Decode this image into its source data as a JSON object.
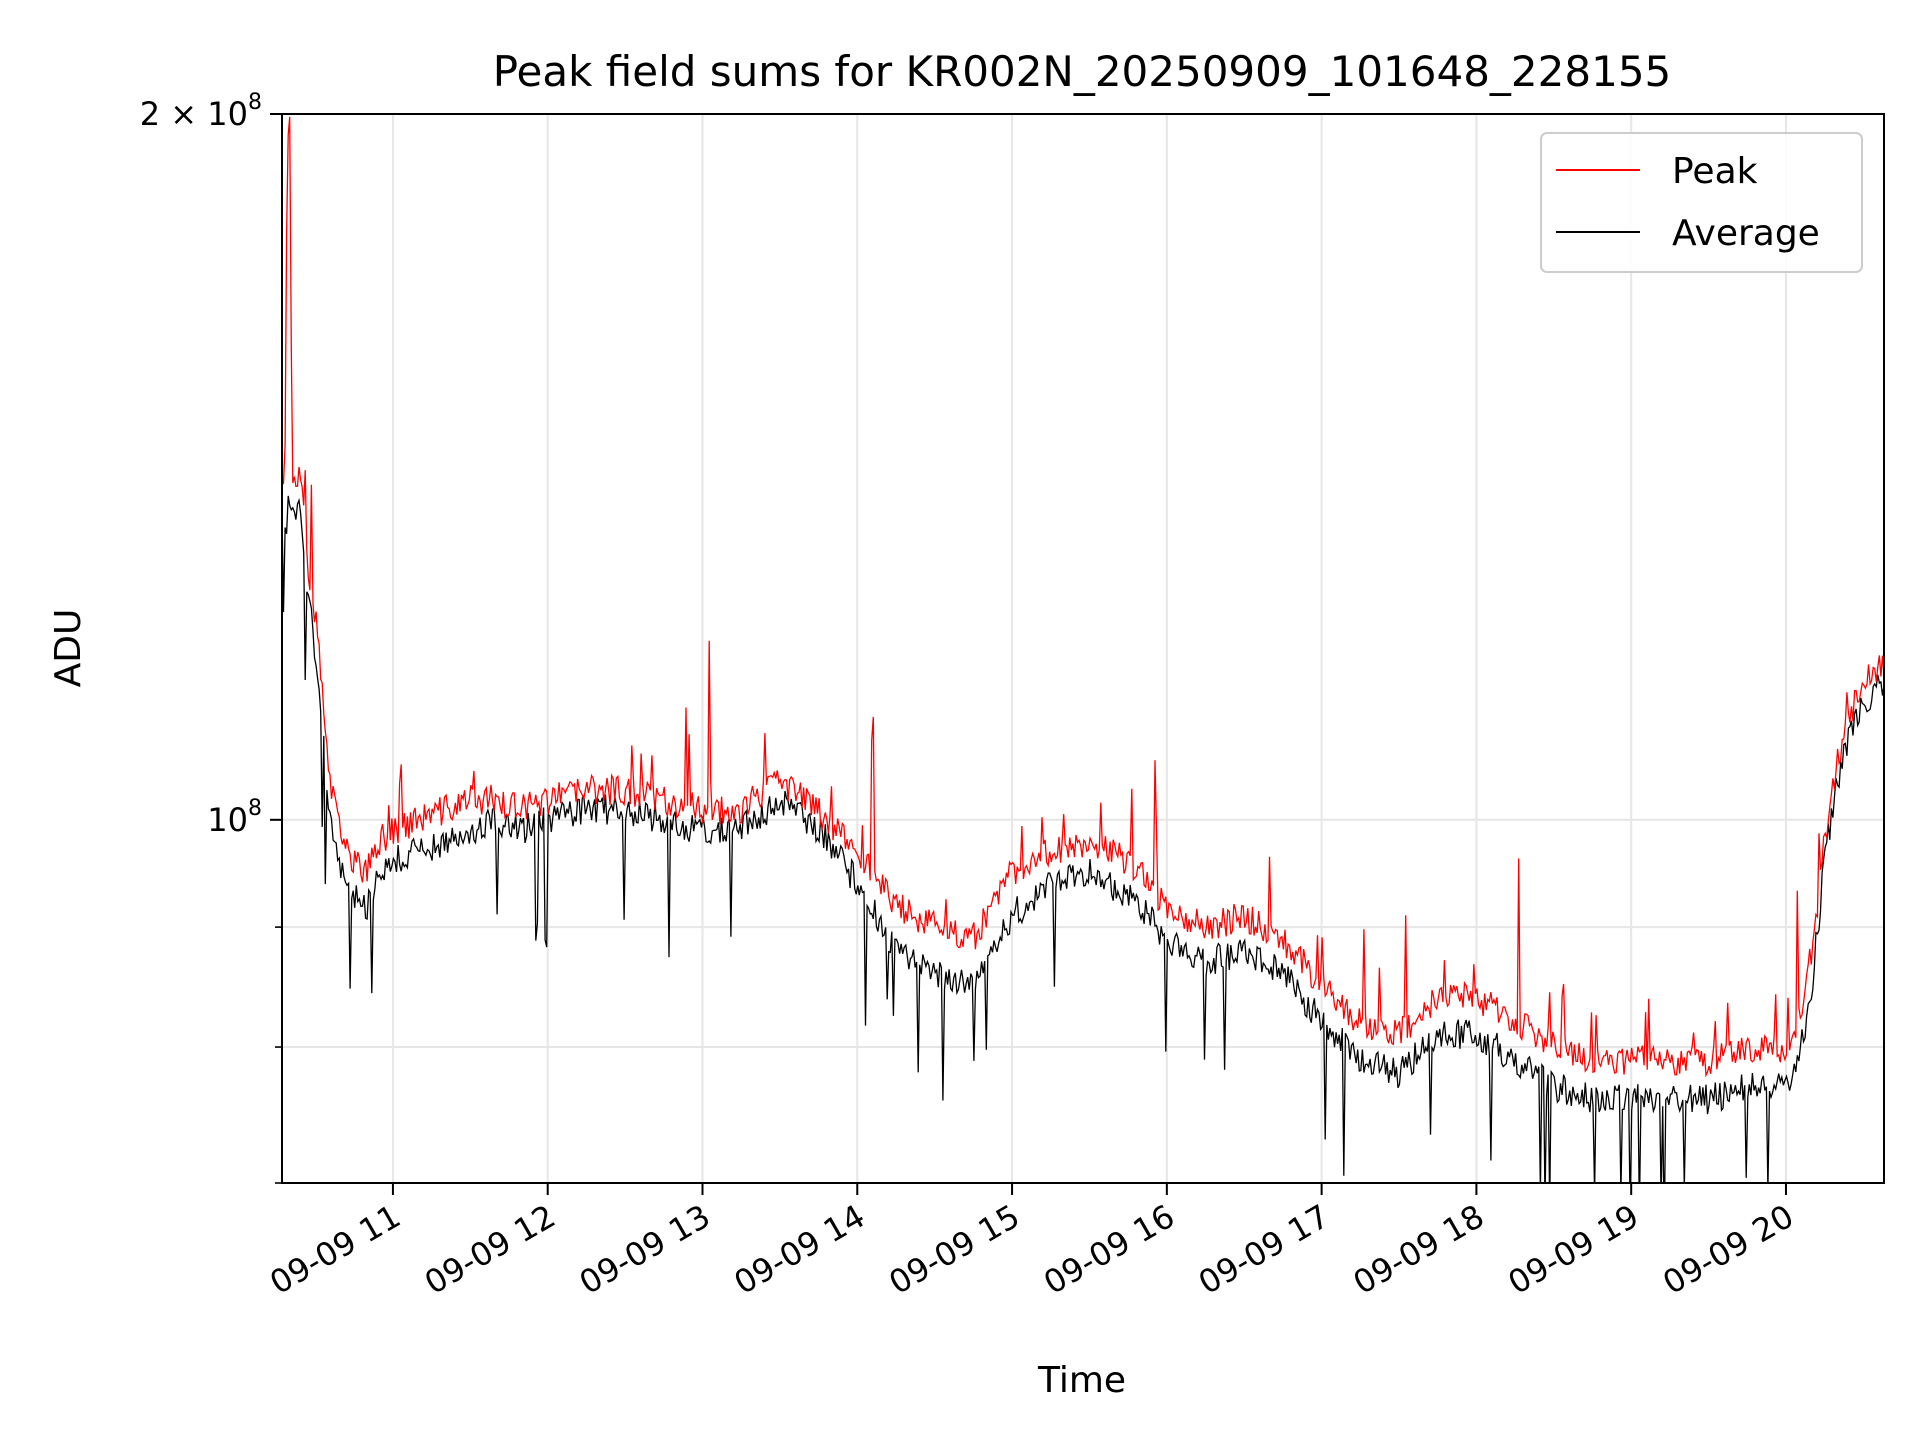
{
  "chart_data": {
    "type": "line",
    "title": "Peak field sums for KR002N_20250909_101648_228155",
    "xlabel": "Time",
    "ylabel": "ADU",
    "yscale": "log",
    "ylim": [
      70000000,
      200000000
    ],
    "xlim": [
      "2025-09-09T10:17",
      "2025-09-09T20:38"
    ],
    "grid": true,
    "legend_position": "top-right",
    "x_ticks": [
      "09-09 11",
      "09-09 12",
      "09-09 13",
      "09-09 14",
      "09-09 15",
      "09-09 16",
      "09-09 17",
      "09-09 18",
      "09-09 19",
      "09-09 20"
    ],
    "y_ticks": [
      {
        "value": 100000000,
        "base": "10",
        "exp": "8",
        "coef": ""
      },
      {
        "value": 200000000,
        "base": "10",
        "exp": "8",
        "coef": "2 × "
      }
    ],
    "y_minor_ticks": [
      70000000,
      80000000,
      90000000
    ],
    "series": [
      {
        "name": "Peak",
        "color": "#ff0000",
        "x": [
          "10:17",
          "10:18",
          "10:19",
          "10:20",
          "10:21",
          "10:24",
          "10:27",
          "10:30",
          "10:33",
          "10:36",
          "10:40",
          "10:45",
          "10:50",
          "10:55",
          "11:00",
          "11:10",
          "11:20",
          "11:30",
          "11:40",
          "11:50",
          "12:00",
          "12:15",
          "12:30",
          "12:45",
          "13:00",
          "13:15",
          "13:30",
          "13:45",
          "14:00",
          "14:15",
          "14:30",
          "14:45",
          "15:00",
          "15:15",
          "15:30",
          "15:45",
          "16:00",
          "16:15",
          "16:30",
          "16:45",
          "17:00",
          "17:15",
          "17:30",
          "17:45",
          "18:00",
          "18:15",
          "18:30",
          "18:45",
          "19:00",
          "19:15",
          "19:30",
          "19:45",
          "20:00",
          "20:05",
          "20:10",
          "20:15",
          "20:20",
          "20:25",
          "20:30",
          "20:35",
          "20:38"
        ],
        "values": [
          140000000,
          136000000,
          190000000,
          202000000,
          138000000,
          140000000,
          128000000,
          122000000,
          112000000,
          103000000,
          98000000,
          96000000,
          95000000,
          98000000,
          99000000,
          100000000,
          101000000,
          102000000,
          102000000,
          101000000,
          102000000,
          103000000,
          103000000,
          102000000,
          101000000,
          101000000,
          104000000,
          101000000,
          97000000,
          92000000,
          90000000,
          89000000,
          95000000,
          97000000,
          98000000,
          96000000,
          92000000,
          90000000,
          91000000,
          89000000,
          85000000,
          82000000,
          81000000,
          84000000,
          84000000,
          82000000,
          80000000,
          79000000,
          79000000,
          79000000,
          79000000,
          80000000,
          80000000,
          82000000,
          88000000,
          98000000,
          106000000,
          111000000,
          114000000,
          116000000,
          116000000
        ]
      },
      {
        "name": "Average",
        "color": "#000000",
        "x": [
          "10:17",
          "10:18",
          "10:19",
          "10:20",
          "10:21",
          "10:24",
          "10:27",
          "10:30",
          "10:33",
          "10:36",
          "10:40",
          "10:45",
          "10:50",
          "10:55",
          "11:00",
          "11:10",
          "11:20",
          "11:30",
          "11:40",
          "11:50",
          "12:00",
          "12:15",
          "12:30",
          "12:45",
          "13:00",
          "13:15",
          "13:30",
          "13:45",
          "14:00",
          "14:15",
          "14:30",
          "14:45",
          "15:00",
          "15:15",
          "15:30",
          "15:45",
          "16:00",
          "16:15",
          "16:30",
          "16:45",
          "17:00",
          "17:15",
          "17:30",
          "17:45",
          "18:00",
          "18:15",
          "18:30",
          "18:45",
          "19:00",
          "19:15",
          "19:30",
          "19:45",
          "20:00",
          "20:05",
          "20:10",
          "20:15",
          "20:20",
          "20:25",
          "20:30",
          "20:35",
          "20:38"
        ],
        "values": [
          136000000,
          132000000,
          135000000,
          138000000,
          134000000,
          136000000,
          125000000,
          118000000,
          108000000,
          100000000,
          95000000,
          93000000,
          92000000,
          95000000,
          96000000,
          97000000,
          98000000,
          99000000,
          100000000,
          99000000,
          100000000,
          101000000,
          101000000,
          100000000,
          99000000,
          99000000,
          102000000,
          99000000,
          94000000,
          88000000,
          86000000,
          85000000,
          91000000,
          94000000,
          95000000,
          93000000,
          89000000,
          87000000,
          88000000,
          86000000,
          82000000,
          79000000,
          78000000,
          81000000,
          81000000,
          79000000,
          77000000,
          76000000,
          76000000,
          76000000,
          76000000,
          77000000,
          77000000,
          79000000,
          85000000,
          96000000,
          104000000,
          109000000,
          112000000,
          114000000,
          114000000
        ]
      }
    ]
  }
}
